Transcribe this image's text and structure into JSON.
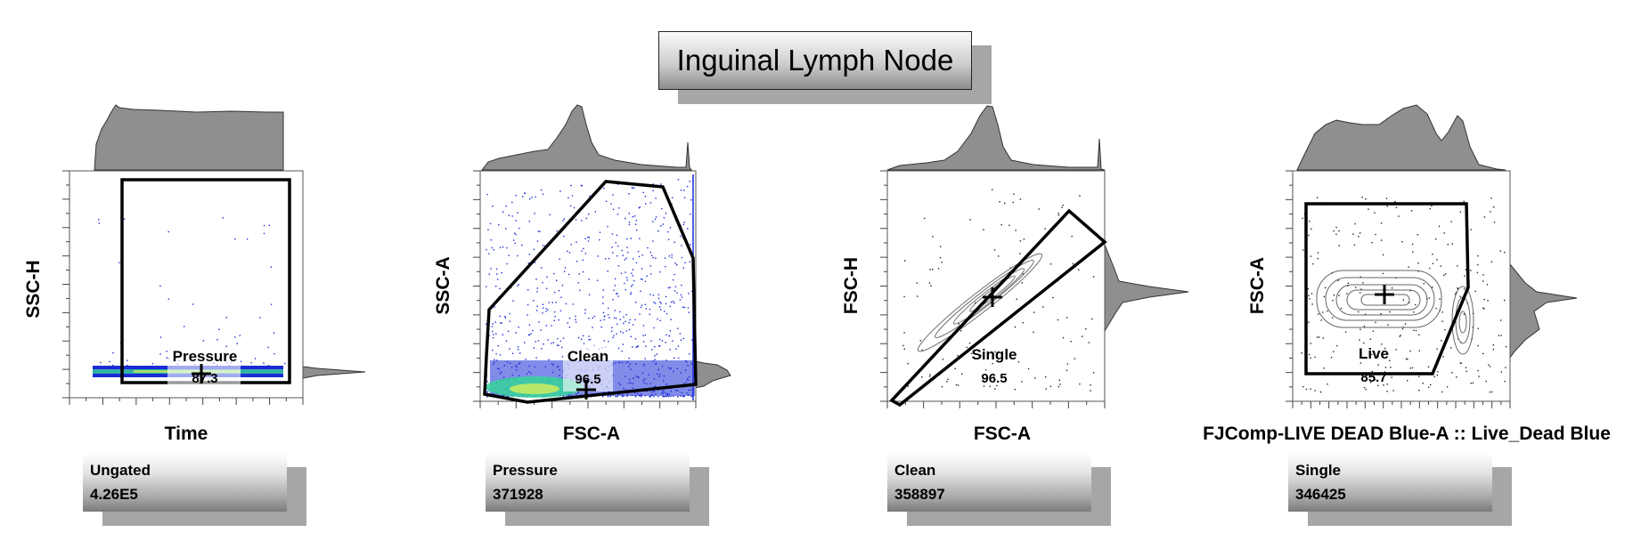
{
  "title": "Inguinal Lymph Node",
  "chart_data": [
    {
      "type": "scatter",
      "xlabel": "Time",
      "ylabel": "SSC-H",
      "gate": {
        "name": "Pressure",
        "value": "87.3"
      },
      "population": {
        "name": "Ungated",
        "count": "4.26E5"
      }
    },
    {
      "type": "scatter",
      "xlabel": "FSC-A",
      "ylabel": "SSC-A",
      "gate": {
        "name": "Clean",
        "value": "96.5"
      },
      "population": {
        "name": "Pressure",
        "count": "371928"
      }
    },
    {
      "type": "scatter",
      "xlabel": "FSC-A",
      "ylabel": "FSC-H",
      "gate": {
        "name": "Single",
        "value": "96.5"
      },
      "population": {
        "name": "Clean",
        "count": "358897"
      }
    },
    {
      "type": "scatter",
      "xlabel": "FJComp-LIVE DEAD Blue-A :: Live_Dead Blue",
      "ylabel": "FSC-A",
      "gate": {
        "name": "Live",
        "value": "85.7"
      },
      "population": {
        "name": "Single",
        "count": "346425"
      }
    }
  ],
  "colors": {
    "histogram": "#8f8f8f",
    "gate": "#000000",
    "density_low": "#1a2bd6",
    "density_high": "#36d39a"
  }
}
